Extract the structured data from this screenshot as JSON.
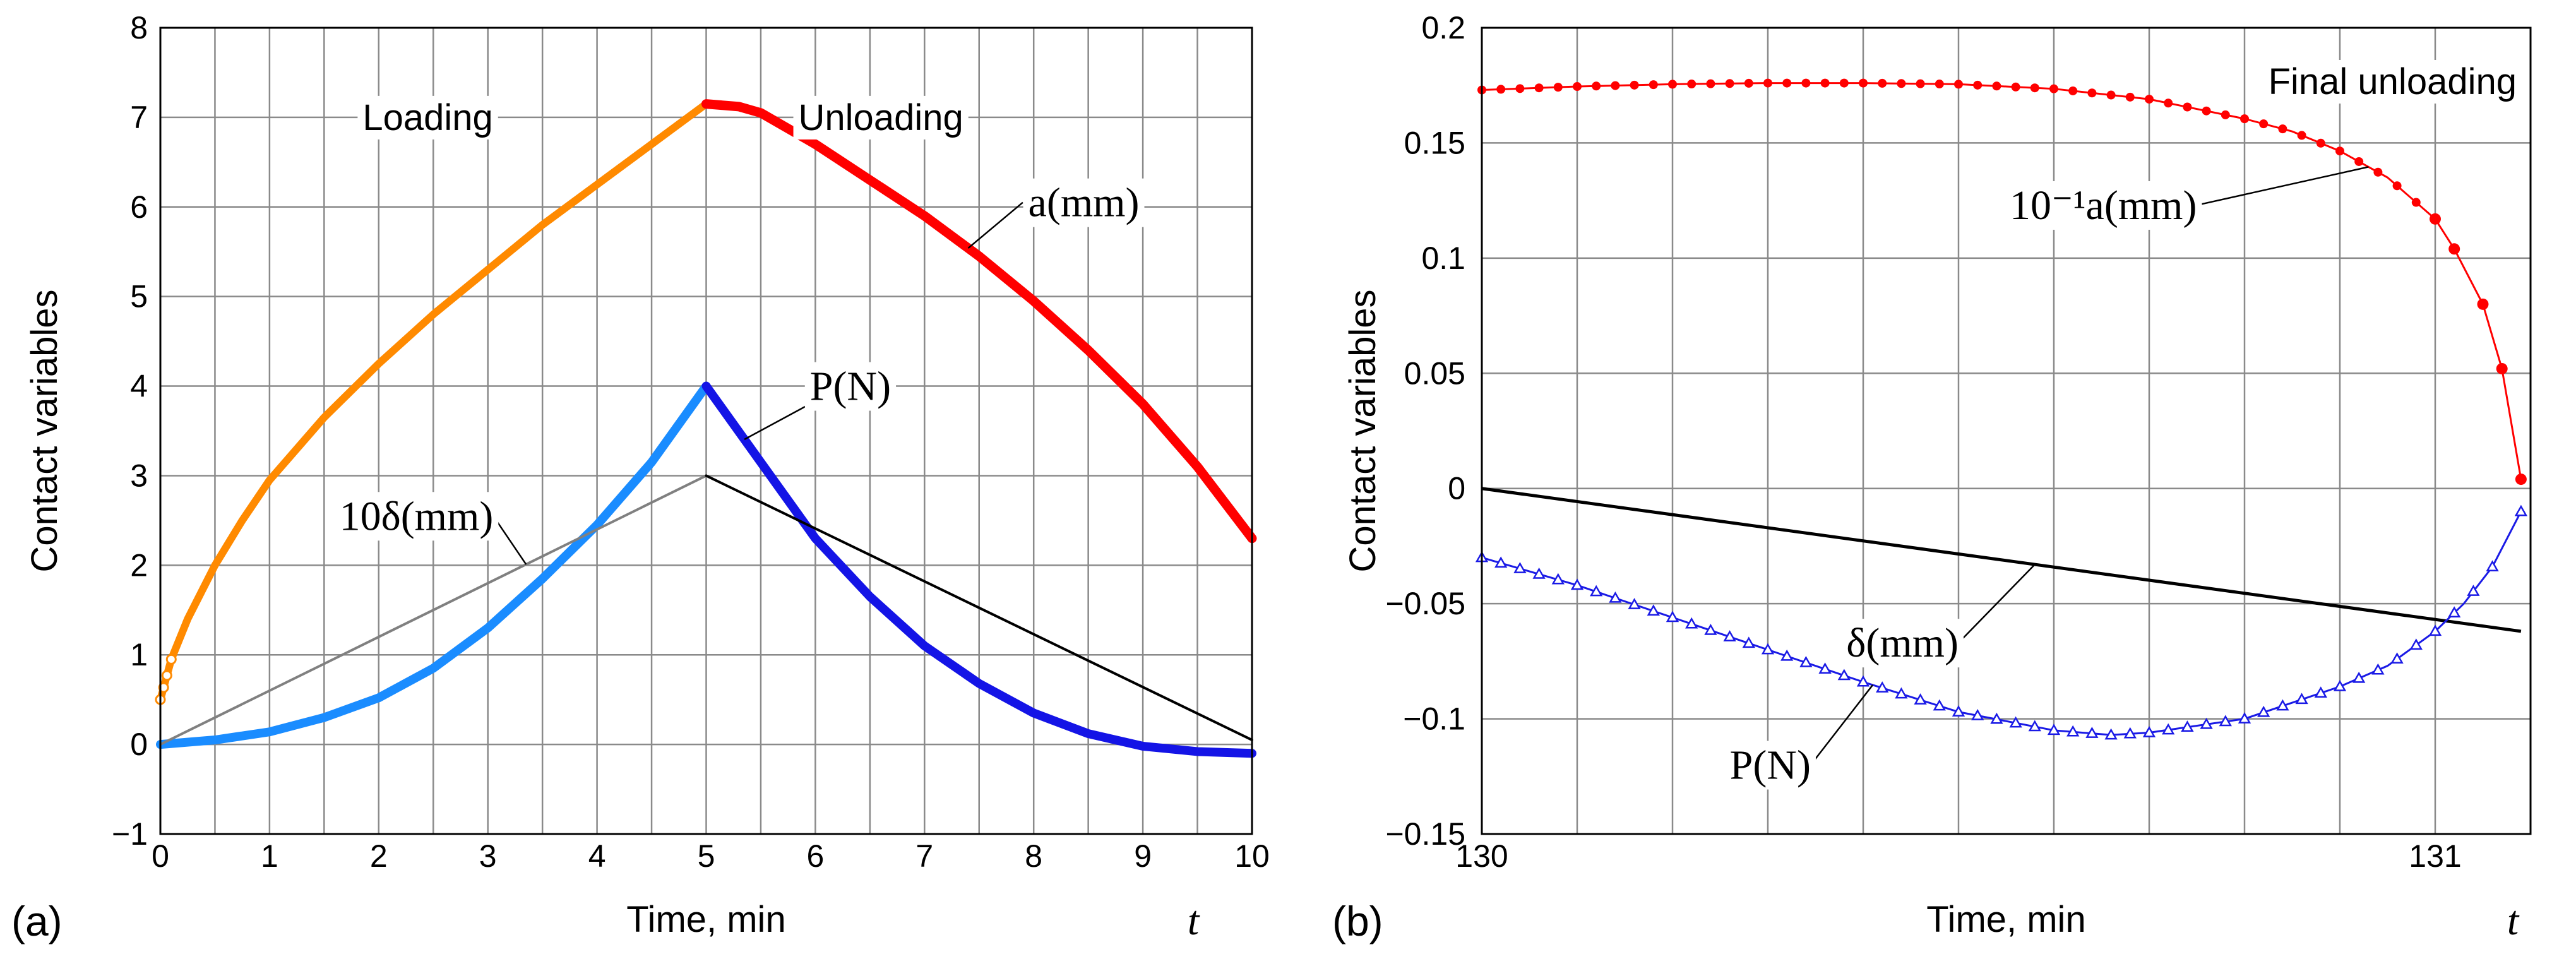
{
  "figure": {
    "panel_a_label": "(a)",
    "panel_b_label": "(b)"
  },
  "colors": {
    "a_loading": "#ff8a00",
    "a_unloading": "#ff0000",
    "p_loading": "#1a8cff",
    "p_unloading": "#1414e6",
    "delta_loading": "#808080",
    "delta_unloading": "#000000",
    "b_a": "#ff0000",
    "b_p": "#1a1ae6",
    "b_delta": "#000000"
  },
  "chart_data": [
    {
      "type": "line",
      "panel": "(a)",
      "xlabel": "Time, min",
      "ylabel": "Contact variables",
      "axis_var": "t",
      "xlim": [
        0,
        10
      ],
      "ylim": [
        -1,
        8
      ],
      "xticks": [
        0,
        1,
        2,
        3,
        4,
        5,
        6,
        7,
        8,
        9,
        10
      ],
      "yticks": [
        -1,
        0,
        1,
        2,
        3,
        4,
        5,
        6,
        7,
        8
      ],
      "grid": true,
      "annotations": [
        {
          "text": "Loading"
        },
        {
          "text": "Unloading"
        },
        {
          "text": "a(mm)"
        },
        {
          "text": "P(N)"
        },
        {
          "text": "10δ(mm)"
        }
      ],
      "series": [
        {
          "name": "a(mm) loading",
          "x": [
            0,
            0.1,
            0.25,
            0.5,
            0.75,
            1,
            1.5,
            2,
            2.5,
            3,
            3.5,
            4,
            4.5,
            5
          ],
          "values": [
            0.5,
            0.95,
            1.4,
            2.0,
            2.5,
            2.95,
            3.65,
            4.25,
            4.8,
            5.3,
            5.8,
            6.25,
            6.7,
            7.15
          ]
        },
        {
          "name": "a(mm) unloading",
          "x": [
            5,
            5.3,
            5.5,
            6,
            6.5,
            7,
            7.5,
            8,
            8.5,
            9,
            9.5,
            10
          ],
          "values": [
            7.15,
            7.12,
            7.05,
            6.7,
            6.3,
            5.9,
            5.45,
            4.95,
            4.4,
            3.8,
            3.1,
            2.3
          ]
        },
        {
          "name": "P(N) loading",
          "x": [
            0,
            0.5,
            1,
            1.5,
            2,
            2.5,
            3,
            3.5,
            4,
            4.5,
            5
          ],
          "values": [
            0,
            0.05,
            0.14,
            0.3,
            0.52,
            0.85,
            1.3,
            1.85,
            2.45,
            3.15,
            4.0
          ]
        },
        {
          "name": "P(N) unloading",
          "x": [
            5,
            5.5,
            6,
            6.5,
            7,
            7.5,
            8,
            8.5,
            9,
            9.5,
            10
          ],
          "values": [
            4.0,
            3.15,
            2.3,
            1.65,
            1.1,
            0.68,
            0.35,
            0.12,
            -0.02,
            -0.08,
            -0.1
          ]
        },
        {
          "name": "10δ(mm) loading",
          "x": [
            0,
            5
          ],
          "values": [
            0,
            3.0
          ]
        },
        {
          "name": "10δ(mm) unloading",
          "x": [
            5,
            10
          ],
          "values": [
            3.0,
            0.05
          ]
        }
      ]
    },
    {
      "type": "line",
      "panel": "(b)",
      "xlabel": "Time, min",
      "ylabel": "Contact variables",
      "axis_var": "t",
      "xlim": [
        130,
        131.1
      ],
      "ylim": [
        -0.15,
        0.2
      ],
      "xticks": [
        130,
        131
      ],
      "xtick_labels": [
        "130",
        "131"
      ],
      "yticks": [
        -0.15,
        -0.1,
        -0.05,
        0,
        0.05,
        0.1,
        0.15,
        0.2
      ],
      "ytick_labels": [
        "−0.15",
        "−0.1",
        "−0.05",
        "0",
        "0.05",
        "0.1",
        "0.15",
        "0.2"
      ],
      "grid": true,
      "annotations": [
        {
          "text": "Final unloading"
        },
        {
          "text": "10⁻¹a(mm)"
        },
        {
          "text": "δ(mm)"
        },
        {
          "text": "P(N)"
        }
      ],
      "series": [
        {
          "name": "10⁻¹a(mm)",
          "marker": "circle",
          "x": [
            130.0,
            130.1,
            130.2,
            130.3,
            130.4,
            130.5,
            130.6,
            130.7,
            130.8,
            130.85,
            130.9,
            130.95,
            131.0,
            131.02,
            131.05,
            131.07,
            131.09
          ],
          "values": [
            0.173,
            0.1745,
            0.1755,
            0.176,
            0.176,
            0.1755,
            0.1735,
            0.169,
            0.1605,
            0.155,
            0.1465,
            0.135,
            0.117,
            0.104,
            0.08,
            0.052,
            0.004
          ]
        },
        {
          "name": "δ(mm)",
          "marker": "none",
          "x": [
            130.0,
            131.09
          ],
          "values": [
            0.0,
            -0.062
          ]
        },
        {
          "name": "P(N)",
          "marker": "triangle",
          "x": [
            130.0,
            130.1,
            130.2,
            130.3,
            130.4,
            130.5,
            130.6,
            130.66,
            130.7,
            130.8,
            130.9,
            130.95,
            131.0,
            131.03,
            131.06,
            131.09
          ],
          "values": [
            -0.03,
            -0.042,
            -0.056,
            -0.07,
            -0.084,
            -0.097,
            -0.105,
            -0.107,
            -0.106,
            -0.1,
            -0.086,
            -0.077,
            -0.062,
            -0.05,
            -0.034,
            -0.01
          ]
        }
      ]
    }
  ]
}
